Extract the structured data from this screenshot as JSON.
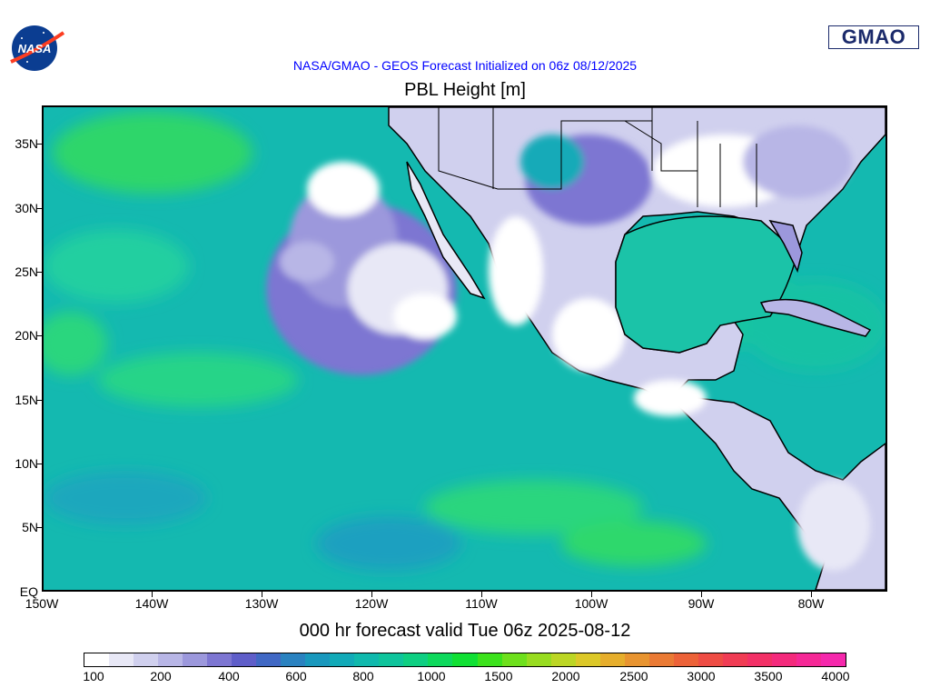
{
  "header": {
    "subtitle": "NASA/GMAO - GEOS Forecast Initialized on 06z 08/12/2025",
    "title": "PBL Height [m]",
    "gmao_logo_text": "GMAO",
    "nasa_logo_text": "NASA"
  },
  "map": {
    "projection": "latitude-longitude",
    "lat_range": [
      "EQ",
      "38N"
    ],
    "lon_range": [
      "150W",
      "73W"
    ],
    "lat_labels": [
      "35N",
      "30N",
      "25N",
      "20N",
      "15N",
      "10N",
      "5N",
      "EQ"
    ],
    "lon_labels": [
      "150W",
      "140W",
      "130W",
      "120W",
      "110W",
      "100W",
      "90W",
      "80W"
    ],
    "background_color": "#14b9b0"
  },
  "footer": {
    "valid_text": "000 hr forecast valid Tue 06z 2025-08-12"
  },
  "colorbar": {
    "labels": [
      "100",
      "200",
      "400",
      "600",
      "800",
      "1000",
      "1500",
      "2000",
      "2500",
      "3000",
      "3500",
      "4000"
    ],
    "colors": [
      "#ffffff",
      "#e8e8f6",
      "#d0d0ee",
      "#b8b6e6",
      "#9c98dc",
      "#7d76d2",
      "#5f5ec9",
      "#4068c4",
      "#2a82c0",
      "#1998bd",
      "#12aab8",
      "#10b9ad",
      "#0fc49c",
      "#0ecf82",
      "#0dd95c",
      "#10e034",
      "#3ce21c",
      "#6ee01c",
      "#98dc20",
      "#bcd624",
      "#dcc828",
      "#e6ae2c",
      "#e89430",
      "#ea7a34",
      "#ec6238",
      "#ee4c44",
      "#f03c54",
      "#f23066",
      "#f42a7c",
      "#f52896",
      "#f528ac"
    ]
  }
}
